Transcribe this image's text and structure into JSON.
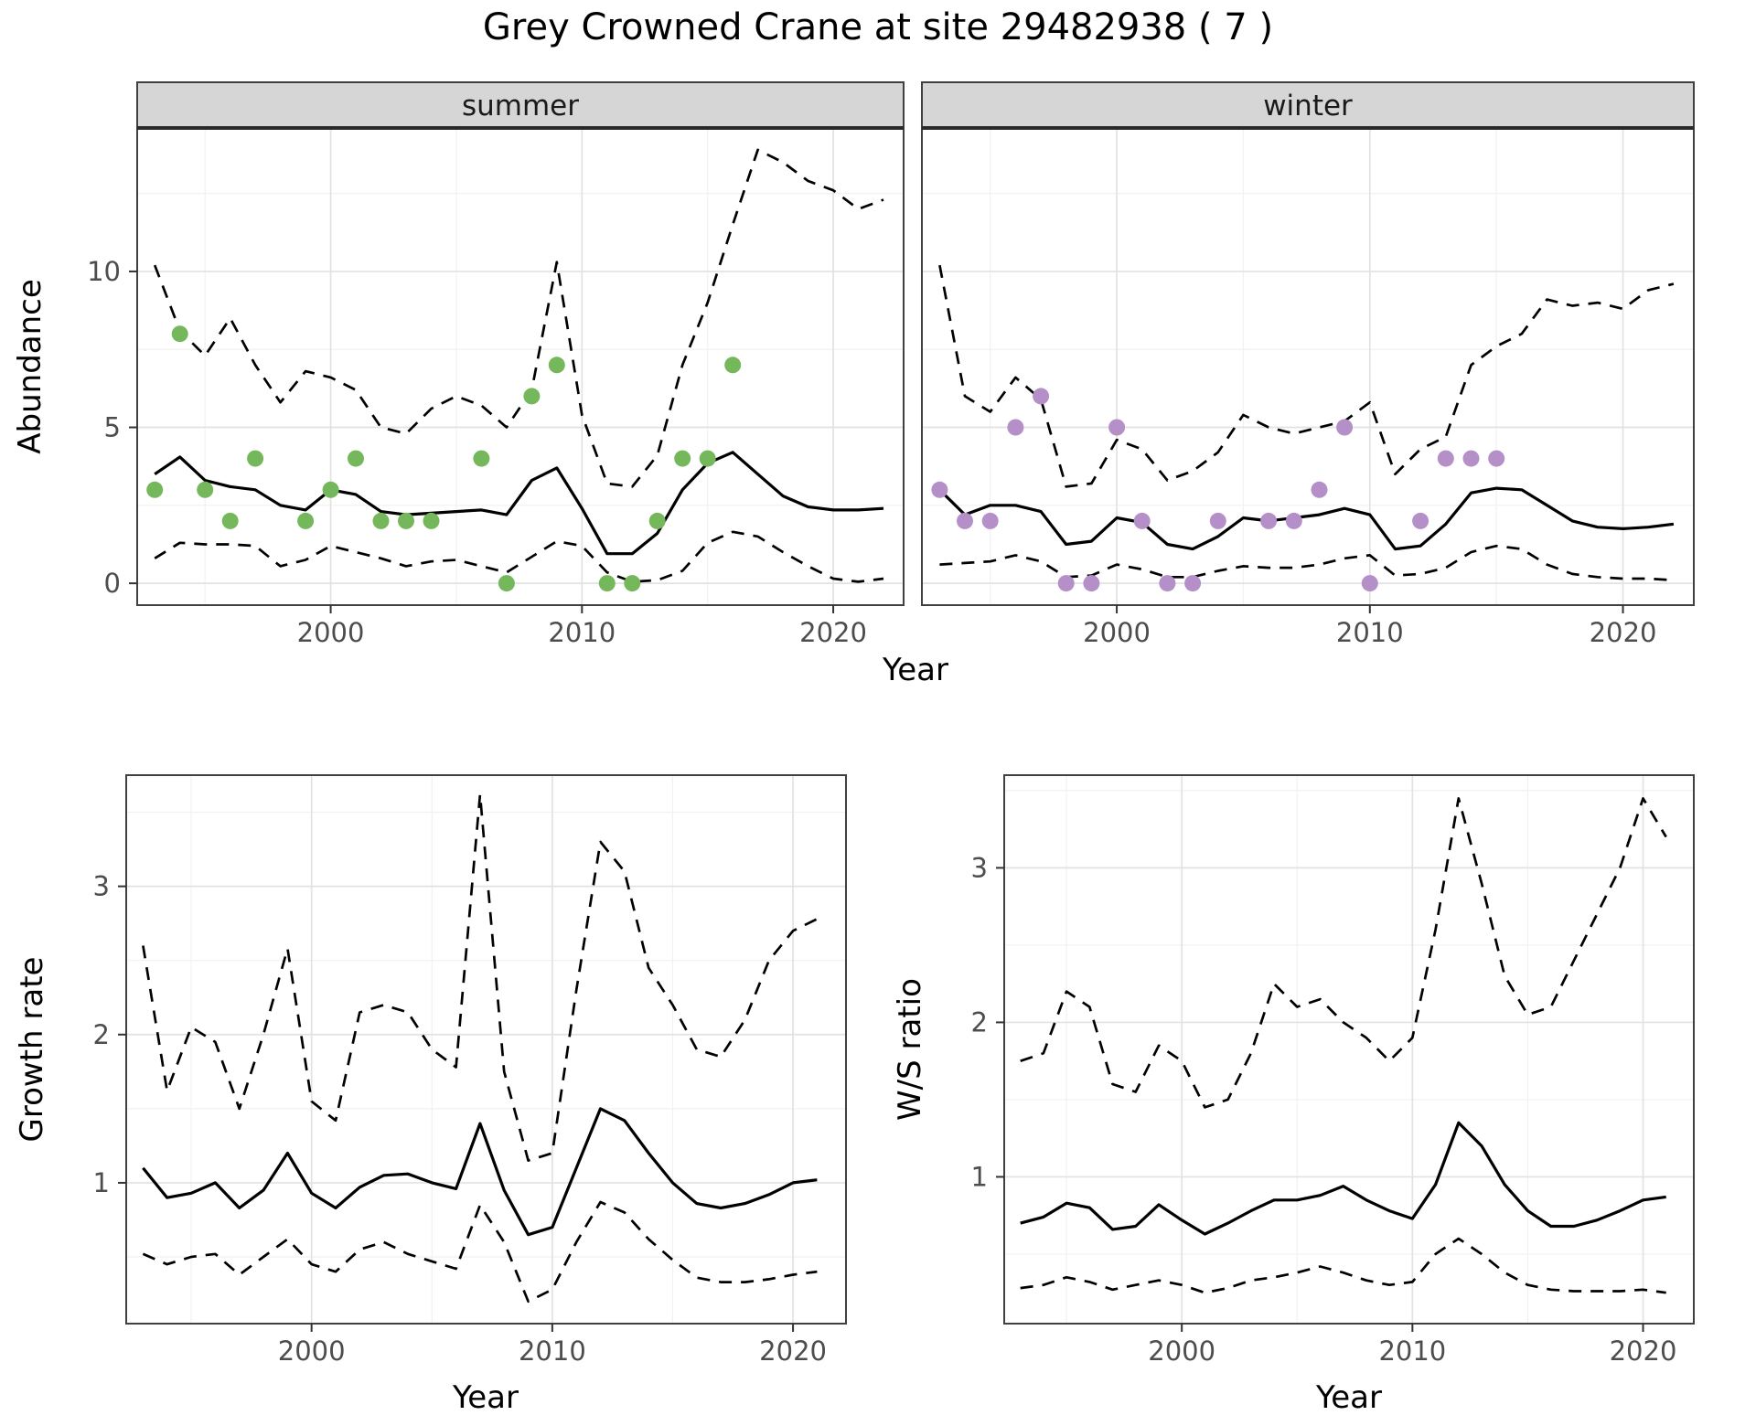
{
  "title": "Grey Crowned Crane at site 29482938 ( 7 )",
  "theme": {
    "background": "#ffffff",
    "panel_background": "#ffffff",
    "panel_border": "#404040",
    "grid_major": "#e2e2e2",
    "grid_minor": "#f1f1f1",
    "strip_background": "#d6d6d6",
    "strip_border": "#2a2a2a",
    "strip_text": "#1a1a1a",
    "line_color": "#000000",
    "tick_color": "#333333",
    "tick_text": "#4d4d4d",
    "axis_title": "#000000",
    "summer_point_color": "#75b85c",
    "winter_point_color": "#b58fc8"
  },
  "shared_axis": {
    "top_xlabel": "Year"
  },
  "chart_data": [
    {
      "id": "abundance_summer",
      "type": "line",
      "facet_label": "summer",
      "xlabel": "Year",
      "ylabel": "Abundance",
      "xlim": [
        1992.3,
        2022.8
      ],
      "ylim": [
        -0.7,
        14.6
      ],
      "xticks": [
        2000,
        2010,
        2020
      ],
      "yticks": [
        0,
        5,
        10
      ],
      "x_minor": [
        1995,
        2005,
        2015
      ],
      "y_minor": [
        2.5,
        7.5,
        12.5
      ],
      "x": [
        1993,
        1994,
        1995,
        1996,
        1997,
        1998,
        1999,
        2000,
        2001,
        2002,
        2003,
        2004,
        2005,
        2006,
        2007,
        2008,
        2009,
        2010,
        2011,
        2012,
        2013,
        2014,
        2015,
        2016,
        2017,
        2018,
        2019,
        2020,
        2021,
        2022
      ],
      "series": [
        {
          "name": "median",
          "style": "solid",
          "values": [
            3.5,
            4.05,
            3.3,
            3.1,
            3.0,
            2.5,
            2.35,
            3.0,
            2.85,
            2.3,
            2.2,
            2.25,
            2.3,
            2.35,
            2.2,
            3.3,
            3.7,
            2.4,
            0.95,
            0.95,
            1.6,
            3.0,
            3.85,
            4.2,
            3.5,
            2.8,
            2.45,
            2.35,
            2.35,
            2.4
          ]
        },
        {
          "name": "upper_ci",
          "style": "dashed",
          "values": [
            10.2,
            8.1,
            7.3,
            8.5,
            7.0,
            5.8,
            6.8,
            6.6,
            6.2,
            5.0,
            4.8,
            5.6,
            6.0,
            5.7,
            5.0,
            6.2,
            10.3,
            5.4,
            3.2,
            3.1,
            4.1,
            7.0,
            9.0,
            11.5,
            13.9,
            13.5,
            12.9,
            12.6,
            12.0,
            12.3
          ]
        },
        {
          "name": "lower_ci",
          "style": "dashed",
          "values": [
            0.8,
            1.3,
            1.25,
            1.25,
            1.2,
            0.55,
            0.75,
            1.2,
            1.0,
            0.8,
            0.55,
            0.7,
            0.75,
            0.55,
            0.35,
            0.85,
            1.35,
            1.2,
            0.35,
            0.05,
            0.1,
            0.4,
            1.3,
            1.65,
            1.5,
            1.0,
            0.55,
            0.15,
            0.05,
            0.15
          ]
        }
      ],
      "points": {
        "name": "observations",
        "color_key": "summer_point_color",
        "x": [
          1993,
          1994,
          1995,
          1996,
          1997,
          1999,
          2000,
          2001,
          2002,
          2003,
          2004,
          2006,
          2007,
          2008,
          2009,
          2011,
          2012,
          2013,
          2014,
          2015,
          2016
        ],
        "y": [
          3,
          8,
          3,
          2,
          4,
          2,
          3,
          4,
          2,
          2,
          2,
          4,
          0,
          6,
          7,
          0,
          0,
          2,
          4,
          4,
          7
        ]
      }
    },
    {
      "id": "abundance_winter",
      "type": "line",
      "facet_label": "winter",
      "xlabel": "Year",
      "ylabel": "Abundance",
      "xlim": [
        1992.3,
        2022.8
      ],
      "ylim": [
        -0.7,
        14.6
      ],
      "xticks": [
        2000,
        2010,
        2020
      ],
      "yticks": [
        0,
        5,
        10
      ],
      "x_minor": [
        1995,
        2005,
        2015
      ],
      "y_minor": [
        2.5,
        7.5,
        12.5
      ],
      "x": [
        1993,
        1994,
        1995,
        1996,
        1997,
        1998,
        1999,
        2000,
        2001,
        2002,
        2003,
        2004,
        2005,
        2006,
        2007,
        2008,
        2009,
        2010,
        2011,
        2012,
        2013,
        2014,
        2015,
        2016,
        2017,
        2018,
        2019,
        2020,
        2021,
        2022
      ],
      "series": [
        {
          "name": "median",
          "style": "solid",
          "values": [
            3.0,
            2.2,
            2.5,
            2.5,
            2.3,
            1.25,
            1.35,
            2.1,
            1.95,
            1.25,
            1.1,
            1.5,
            2.1,
            2.0,
            2.1,
            2.2,
            2.4,
            2.2,
            1.1,
            1.2,
            1.9,
            2.9,
            3.05,
            3.0,
            2.5,
            2.0,
            1.8,
            1.75,
            1.8,
            1.9
          ]
        },
        {
          "name": "upper_ci",
          "style": "dashed",
          "values": [
            10.2,
            6.0,
            5.5,
            6.6,
            5.9,
            3.1,
            3.2,
            4.6,
            4.3,
            3.3,
            3.6,
            4.2,
            5.4,
            5.0,
            4.8,
            5.0,
            5.2,
            5.8,
            3.5,
            4.3,
            4.7,
            7.0,
            7.6,
            8.0,
            9.1,
            8.9,
            9.0,
            8.8,
            9.4,
            9.6
          ]
        },
        {
          "name": "lower_ci",
          "style": "dashed",
          "values": [
            0.6,
            0.65,
            0.7,
            0.9,
            0.7,
            0.2,
            0.25,
            0.6,
            0.45,
            0.2,
            0.2,
            0.4,
            0.55,
            0.5,
            0.5,
            0.6,
            0.8,
            0.9,
            0.25,
            0.3,
            0.5,
            1.0,
            1.2,
            1.1,
            0.6,
            0.3,
            0.2,
            0.15,
            0.15,
            0.1
          ]
        }
      ],
      "points": {
        "name": "observations",
        "color_key": "winter_point_color",
        "x": [
          1993,
          1994,
          1995,
          1996,
          1997,
          1998,
          1999,
          2000,
          2001,
          2002,
          2003,
          2004,
          2006,
          2007,
          2008,
          2009,
          2010,
          2012,
          2013,
          2014,
          2015
        ],
        "y": [
          3,
          2,
          2,
          5,
          6,
          0,
          0,
          5,
          2,
          0,
          0,
          2,
          2,
          2,
          3,
          5,
          0,
          2,
          4,
          4,
          4
        ]
      }
    },
    {
      "id": "growth_rate",
      "type": "line",
      "facet_label": null,
      "xlabel": "Year",
      "ylabel": "Growth rate",
      "xlim": [
        1992.3,
        2022.2
      ],
      "ylim": [
        0.05,
        3.75
      ],
      "xticks": [
        2000,
        2010,
        2020
      ],
      "yticks": [
        1,
        2,
        3
      ],
      "x_minor": [
        1995,
        2005,
        2015
      ],
      "y_minor": [
        0.5,
        1.5,
        2.5,
        3.5
      ],
      "x": [
        1993,
        1994,
        1995,
        1996,
        1997,
        1998,
        1999,
        2000,
        2001,
        2002,
        2003,
        2004,
        2005,
        2006,
        2007,
        2008,
        2009,
        2010,
        2011,
        2012,
        2013,
        2014,
        2015,
        2016,
        2017,
        2018,
        2019,
        2020,
        2021
      ],
      "series": [
        {
          "name": "median",
          "style": "solid",
          "values": [
            1.1,
            0.9,
            0.93,
            1.0,
            0.83,
            0.95,
            1.2,
            0.93,
            0.83,
            0.97,
            1.05,
            1.06,
            1.0,
            0.96,
            1.4,
            0.95,
            0.65,
            0.7,
            1.1,
            1.5,
            1.42,
            1.2,
            1.0,
            0.86,
            0.83,
            0.86,
            0.92,
            1.0,
            1.02
          ]
        },
        {
          "name": "upper_ci",
          "style": "dashed",
          "values": [
            2.6,
            1.62,
            2.05,
            1.95,
            1.5,
            2.0,
            2.58,
            1.55,
            1.42,
            2.15,
            2.2,
            2.15,
            1.9,
            1.78,
            3.62,
            1.75,
            1.15,
            1.2,
            2.3,
            3.3,
            3.1,
            2.45,
            2.2,
            1.9,
            1.85,
            2.1,
            2.5,
            2.7,
            2.78
          ]
        },
        {
          "name": "lower_ci",
          "style": "dashed",
          "values": [
            0.52,
            0.45,
            0.5,
            0.52,
            0.38,
            0.5,
            0.62,
            0.45,
            0.4,
            0.55,
            0.6,
            0.52,
            0.47,
            0.42,
            0.85,
            0.6,
            0.2,
            0.28,
            0.6,
            0.87,
            0.8,
            0.62,
            0.48,
            0.36,
            0.33,
            0.33,
            0.35,
            0.38,
            0.4
          ]
        }
      ],
      "points": null
    },
    {
      "id": "ws_ratio",
      "type": "line",
      "facet_label": null,
      "xlabel": "Year",
      "ylabel": "W/S ratio",
      "xlim": [
        1992.3,
        2022.2
      ],
      "ylim": [
        0.05,
        3.6
      ],
      "xticks": [
        2000,
        2010,
        2020
      ],
      "yticks": [
        1,
        2,
        3
      ],
      "x_minor": [
        1995,
        2005,
        2015
      ],
      "y_minor": [
        0.5,
        1.5,
        2.5,
        3.5
      ],
      "x": [
        1993,
        1994,
        1995,
        1996,
        1997,
        1998,
        1999,
        2000,
        2001,
        2002,
        2003,
        2004,
        2005,
        2006,
        2007,
        2008,
        2009,
        2010,
        2011,
        2012,
        2013,
        2014,
        2015,
        2016,
        2017,
        2018,
        2019,
        2020,
        2021
      ],
      "series": [
        {
          "name": "median",
          "style": "solid",
          "values": [
            0.7,
            0.74,
            0.83,
            0.8,
            0.66,
            0.68,
            0.82,
            0.72,
            0.63,
            0.7,
            0.78,
            0.85,
            0.85,
            0.88,
            0.94,
            0.85,
            0.78,
            0.73,
            0.95,
            1.35,
            1.2,
            0.95,
            0.78,
            0.68,
            0.68,
            0.72,
            0.78,
            0.85,
            0.87
          ]
        },
        {
          "name": "upper_ci",
          "style": "dashed",
          "values": [
            1.75,
            1.8,
            2.2,
            2.1,
            1.6,
            1.55,
            1.85,
            1.75,
            1.45,
            1.5,
            1.8,
            2.25,
            2.1,
            2.15,
            2.0,
            1.9,
            1.75,
            1.9,
            2.6,
            3.45,
            2.9,
            2.3,
            2.05,
            2.1,
            2.4,
            2.7,
            3.0,
            3.45,
            3.2
          ]
        },
        {
          "name": "lower_ci",
          "style": "dashed",
          "values": [
            0.28,
            0.3,
            0.35,
            0.32,
            0.27,
            0.3,
            0.33,
            0.3,
            0.25,
            0.28,
            0.33,
            0.35,
            0.38,
            0.42,
            0.38,
            0.33,
            0.3,
            0.32,
            0.5,
            0.6,
            0.5,
            0.38,
            0.3,
            0.27,
            0.26,
            0.26,
            0.26,
            0.27,
            0.25
          ]
        }
      ],
      "points": null
    }
  ]
}
